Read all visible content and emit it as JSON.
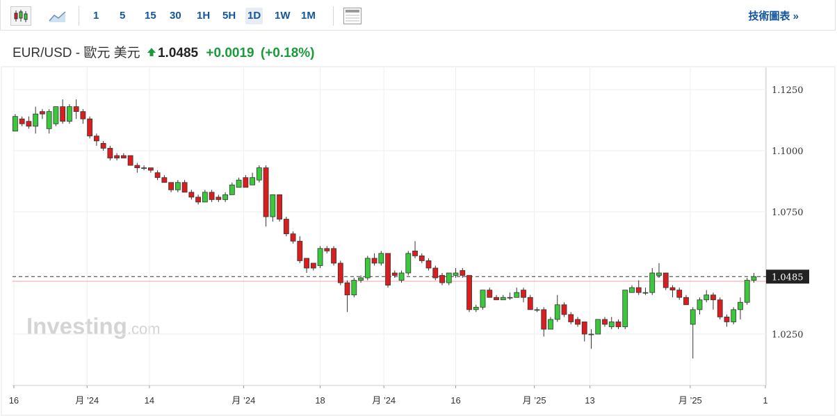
{
  "toolbar": {
    "intervals": [
      "1",
      "5",
      "15",
      "30",
      "1H",
      "5H",
      "1D",
      "1W",
      "1M"
    ],
    "active": "1D",
    "link": "技術圖表 »"
  },
  "header": {
    "title": "EUR/USD - 歐元 美元",
    "price": 1.0485,
    "change": "+0.0019",
    "change_pct": "(+0.18%)"
  },
  "watermark": {
    "brand": "Investing",
    "suffix": ".com"
  },
  "chart_data": {
    "type": "candlestick",
    "up_color": "#3cc83c",
    "down_color": "#d81e1e",
    "outline_color": "#333333",
    "open": [
      1.108,
      1.113,
      1.112,
      1.11,
      1.116,
      1.109,
      1.111,
      1.118,
      1.112,
      1.118,
      1.116,
      1.113,
      1.106,
      1.103,
      1.101,
      1.098,
      1.098,
      1.098,
      1.094,
      1.093,
      1.093,
      1.091,
      1.089,
      1.087,
      1.084,
      1.087,
      1.083,
      1.081,
      1.079,
      1.083,
      1.081,
      1.08,
      1.082,
      1.085,
      1.089,
      1.086,
      1.088,
      1.093,
      1.073,
      1.082,
      1.072,
      1.066,
      1.063,
      1.056,
      1.054,
      1.053,
      1.06,
      1.06,
      1.054,
      1.046,
      1.041,
      1.047,
      1.048,
      1.056,
      1.054,
      1.058,
      1.05,
      1.047,
      1.05,
      1.059,
      1.057,
      1.055,
      1.052,
      1.049,
      1.046,
      1.049,
      1.051,
      1.049,
      1.035,
      1.036,
      1.043,
      1.04,
      1.039,
      1.04,
      1.04,
      1.043,
      1.04,
      1.035,
      1.035,
      1.027,
      1.031,
      1.037,
      1.033,
      1.031,
      1.03,
      1.025,
      1.025,
      1.031,
      1.028,
      1.03,
      1.028,
      1.042,
      1.044,
      1.042,
      1.042,
      1.049,
      1.05,
      1.044,
      1.043,
      1.04,
      1.029,
      1.035,
      1.039,
      1.041,
      1.039,
      1.032,
      1.03,
      1.035,
      1.038,
      1.047
    ],
    "high": [
      1.115,
      1.114,
      1.114,
      1.118,
      1.117,
      1.117,
      1.118,
      1.121,
      1.119,
      1.121,
      1.117,
      1.114,
      1.107,
      1.104,
      1.102,
      1.099,
      1.099,
      1.098,
      1.095,
      1.094,
      1.093,
      1.092,
      1.09,
      1.087,
      1.088,
      1.088,
      1.084,
      1.082,
      1.084,
      1.084,
      1.082,
      1.083,
      1.087,
      1.089,
      1.09,
      1.091,
      1.094,
      1.094,
      1.082,
      1.082,
      1.073,
      1.067,
      1.065,
      1.056,
      1.054,
      1.061,
      1.061,
      1.061,
      1.055,
      1.047,
      1.048,
      1.049,
      1.057,
      1.058,
      1.059,
      1.058,
      1.051,
      1.051,
      1.059,
      1.063,
      1.058,
      1.056,
      1.053,
      1.05,
      1.05,
      1.052,
      1.052,
      1.049,
      1.037,
      1.043,
      1.044,
      1.041,
      1.041,
      1.042,
      1.044,
      1.044,
      1.041,
      1.036,
      1.036,
      1.032,
      1.041,
      1.038,
      1.034,
      1.032,
      1.03,
      1.027,
      1.031,
      1.032,
      1.032,
      1.031,
      1.043,
      1.045,
      1.047,
      1.044,
      1.052,
      1.054,
      1.05,
      1.045,
      1.044,
      1.041,
      1.036,
      1.04,
      1.043,
      1.042,
      1.04,
      1.033,
      1.036,
      1.04,
      1.048,
      1.05
    ],
    "low": [
      1.108,
      1.11,
      1.109,
      1.107,
      1.113,
      1.107,
      1.11,
      1.111,
      1.111,
      1.113,
      1.111,
      1.105,
      1.102,
      1.1,
      1.096,
      1.096,
      1.097,
      1.094,
      1.091,
      1.092,
      1.091,
      1.088,
      1.087,
      1.083,
      1.083,
      1.083,
      1.08,
      1.078,
      1.079,
      1.079,
      1.079,
      1.079,
      1.082,
      1.085,
      1.085,
      1.086,
      1.087,
      1.069,
      1.071,
      1.071,
      1.065,
      1.062,
      1.054,
      1.05,
      1.051,
      1.052,
      1.058,
      1.053,
      1.045,
      1.034,
      1.04,
      1.046,
      1.047,
      1.053,
      1.053,
      1.044,
      1.048,
      1.046,
      1.049,
      1.056,
      1.054,
      1.051,
      1.047,
      1.045,
      1.045,
      1.048,
      1.048,
      1.034,
      1.034,
      1.035,
      1.04,
      1.039,
      1.039,
      1.039,
      1.04,
      1.038,
      1.035,
      1.034,
      1.024,
      1.027,
      1.03,
      1.032,
      1.029,
      1.028,
      1.022,
      1.019,
      1.025,
      1.028,
      1.027,
      1.027,
      1.027,
      1.042,
      1.041,
      1.041,
      1.041,
      1.048,
      1.043,
      1.04,
      1.039,
      1.037,
      1.015,
      1.033,
      1.038,
      1.035,
      1.031,
      1.028,
      1.029,
      1.031,
      1.037,
      1.046
    ],
    "close": [
      1.114,
      1.111,
      1.11,
      1.115,
      1.115,
      1.116,
      1.118,
      1.112,
      1.118,
      1.116,
      1.113,
      1.106,
      1.104,
      1.101,
      1.097,
      1.097,
      1.097,
      1.094,
      1.093,
      1.093,
      1.092,
      1.089,
      1.087,
      1.084,
      1.087,
      1.083,
      1.081,
      1.079,
      1.083,
      1.08,
      1.08,
      1.082,
      1.086,
      1.088,
      1.085,
      1.089,
      1.093,
      1.073,
      1.082,
      1.072,
      1.066,
      1.063,
      1.055,
      1.052,
      1.052,
      1.06,
      1.059,
      1.054,
      1.046,
      1.041,
      1.047,
      1.048,
      1.056,
      1.054,
      1.058,
      1.045,
      1.049,
      1.05,
      1.058,
      1.057,
      1.055,
      1.052,
      1.048,
      1.046,
      1.05,
      1.05,
      1.049,
      1.035,
      1.036,
      1.043,
      1.04,
      1.039,
      1.04,
      1.04,
      1.042,
      1.04,
      1.035,
      1.035,
      1.027,
      1.031,
      1.037,
      1.033,
      1.03,
      1.029,
      1.025,
      1.025,
      1.031,
      1.029,
      1.03,
      1.028,
      1.043,
      1.044,
      1.042,
      1.042,
      1.05,
      1.05,
      1.044,
      1.043,
      1.04,
      1.037,
      1.035,
      1.039,
      1.041,
      1.039,
      1.032,
      1.03,
      1.035,
      1.038,
      1.047,
      1.0485
    ],
    "last_price": 1.0485,
    "prev_close": 1.0466,
    "ylim": [
      1.004,
      1.1318
    ],
    "yticks": [
      {
        "value": 1.125,
        "label": "1.1250"
      },
      {
        "value": 1.1,
        "label": "1.1000"
      },
      {
        "value": 1.075,
        "label": "1.0750"
      },
      {
        "value": 1.025,
        "label": "1.0250"
      }
    ],
    "xlim": [
      -0.4,
      110.8
    ],
    "xticks": [
      {
        "value": -0.2,
        "label": "16"
      },
      {
        "value": 10.6,
        "label": "月 ’24"
      },
      {
        "value": 19.8,
        "label": "14"
      },
      {
        "value": 33.7,
        "label": "月 ’24"
      },
      {
        "value": 45,
        "label": "18"
      },
      {
        "value": 54.4,
        "label": "月 ’24"
      },
      {
        "value": 65,
        "label": "16"
      },
      {
        "value": 76.6,
        "label": "月 ’25"
      },
      {
        "value": 84.8,
        "label": "13"
      },
      {
        "value": 99.6,
        "label": "月 ’25"
      },
      {
        "value": 110.7,
        "label": "1"
      }
    ],
    "grid": true
  }
}
